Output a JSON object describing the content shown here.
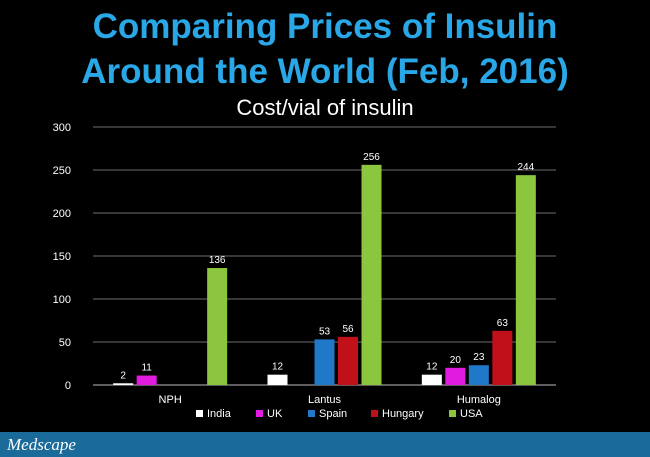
{
  "slide": {
    "title_line1": "Comparing Prices of Insulin",
    "title_line2": "Around the World (Feb, 2016)",
    "title_color": "#2aa7e6",
    "footer_brand": "Medscape",
    "footer_color": "#1a6a9a"
  },
  "chart_data": {
    "type": "bar",
    "title": "Cost/vial of insulin",
    "xlabel": "",
    "ylabel": "",
    "ylim": [
      0,
      300
    ],
    "yticks": [
      0,
      50,
      100,
      150,
      200,
      250,
      300
    ],
    "categories": [
      "NPH",
      "Lantus",
      "Humalog"
    ],
    "series": [
      {
        "name": "India",
        "color": "#ffffff",
        "values": [
          2,
          12,
          12
        ]
      },
      {
        "name": "UK",
        "color": "#e21be0",
        "values": [
          11,
          null,
          20
        ]
      },
      {
        "name": "Spain",
        "color": "#1f78c8",
        "values": [
          null,
          53,
          23
        ]
      },
      {
        "name": "Hungary",
        "color": "#c0101a",
        "values": [
          null,
          56,
          63
        ]
      },
      {
        "name": "USA",
        "color": "#8cc63f",
        "values": [
          136,
          256,
          244
        ]
      }
    ],
    "grid": true,
    "legend_position": "bottom"
  }
}
